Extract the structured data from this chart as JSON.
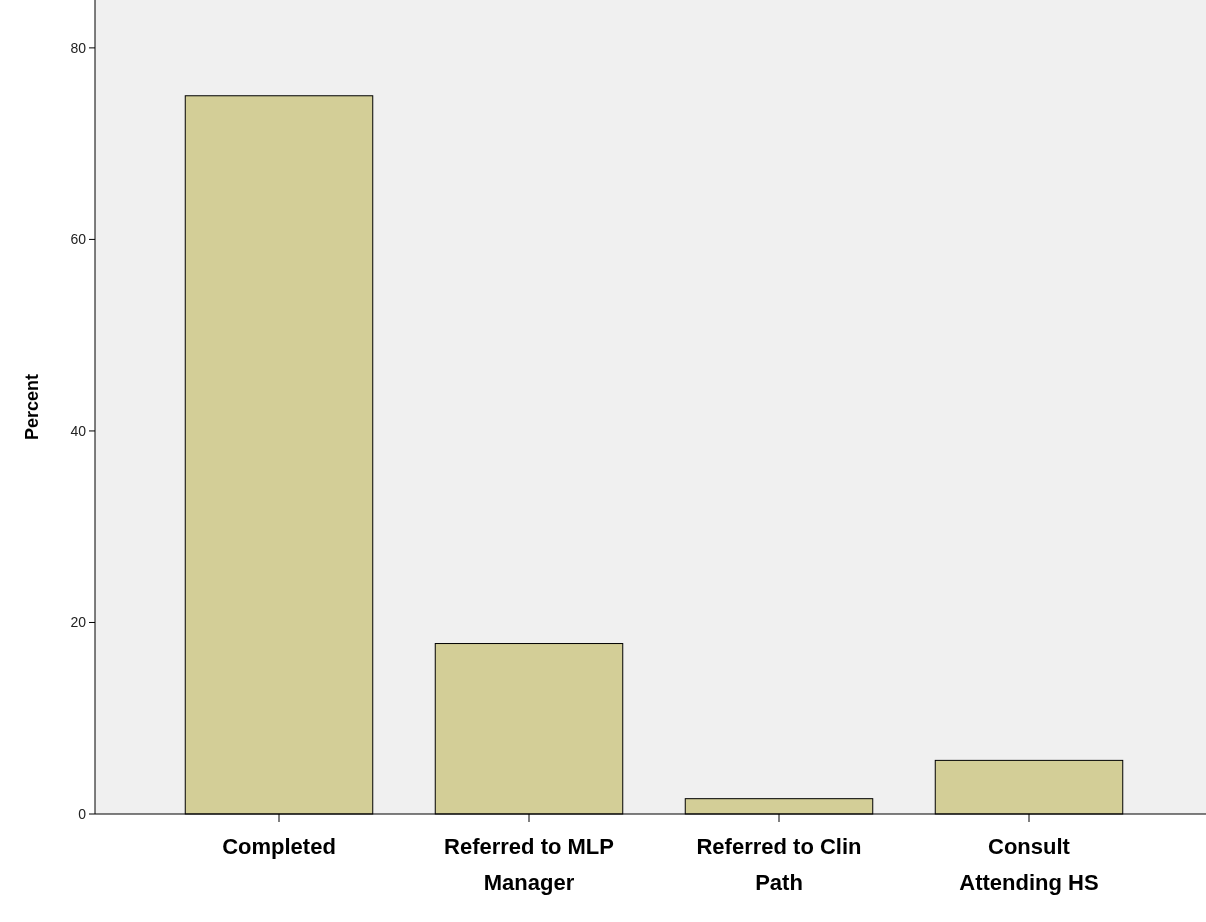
{
  "chart_data": {
    "type": "bar",
    "ylabel": "Percent",
    "categories": [
      "Completed",
      "Referred to MLP Manager",
      "Referred to Clin Path",
      "Consult Attending HS"
    ],
    "values": [
      75,
      17.8,
      1.6,
      5.6
    ],
    "color": "#d3ce97",
    "ylim": [
      0,
      85
    ],
    "yticks": [
      0,
      20,
      40,
      60,
      80
    ],
    "grid": false
  }
}
